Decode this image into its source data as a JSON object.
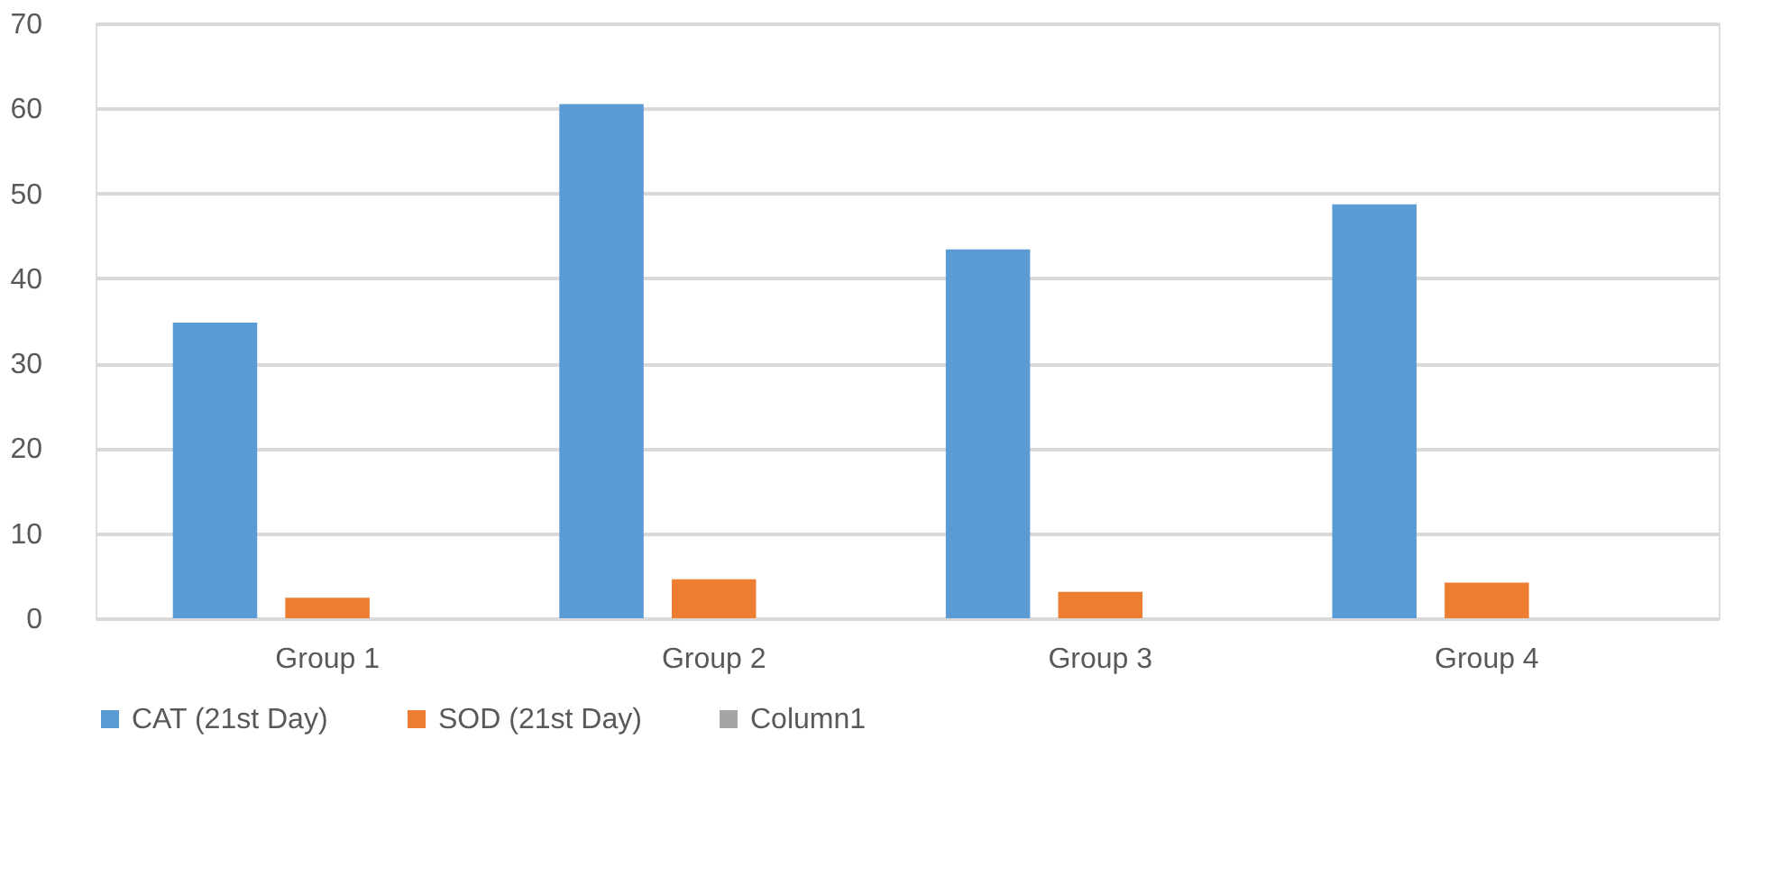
{
  "chart_data": {
    "type": "bar",
    "categories": [
      "Group 1",
      "Group 2",
      "Group 3",
      "Group 4"
    ],
    "series": [
      {
        "name": "CAT (21st Day)",
        "color": "#5b9bd5",
        "values": [
          34.8,
          60.5,
          43.4,
          48.7
        ]
      },
      {
        "name": "SOD (21st Day)",
        "color": "#ed7d31",
        "values": [
          2.4,
          4.6,
          3.1,
          4.2
        ]
      },
      {
        "name": "Column1",
        "color": "#a5a5a5",
        "values": [
          null,
          null,
          null,
          null
        ]
      }
    ],
    "ylim": [
      0,
      70
    ],
    "yticks": [
      0,
      10,
      20,
      30,
      40,
      50,
      60,
      70
    ],
    "grid": "y",
    "legend": "bottom"
  }
}
